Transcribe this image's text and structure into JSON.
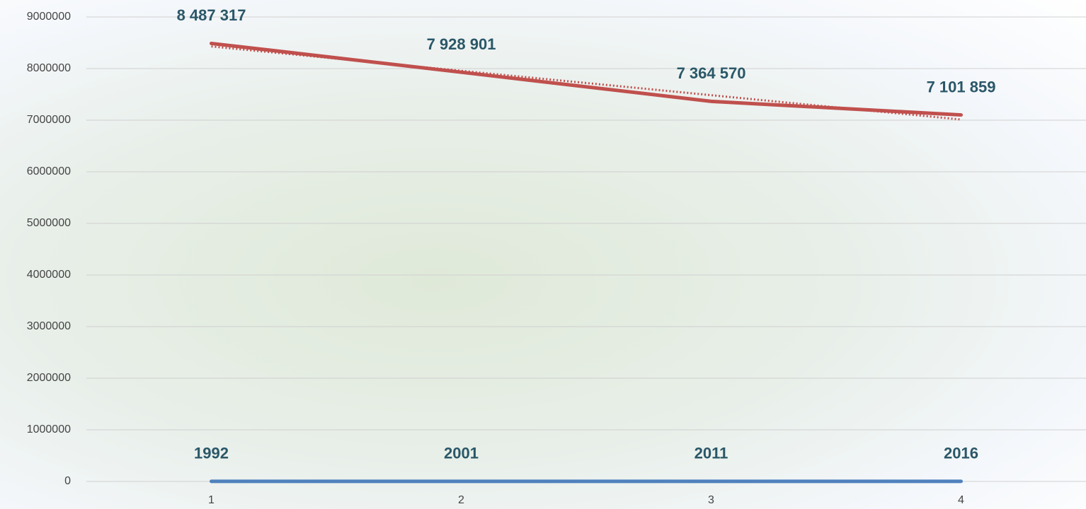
{
  "chart_data": {
    "type": "line",
    "categories": [
      "1",
      "2",
      "3",
      "4"
    ],
    "series": [
      {
        "color": "#c0504d",
        "values": [
          8487317,
          7928901,
          7364570,
          7101859
        ],
        "value_labels": [
          "8 487 317",
          "7 928 901",
          "7 364 570",
          "7 101 859"
        ],
        "trendline": true
      },
      {
        "color": "#4f81bd",
        "values": [
          1992,
          2001,
          2011,
          2016
        ]
      }
    ],
    "ylim": [
      0,
      9000000
    ],
    "yticks": [
      0,
      1000000,
      2000000,
      3000000,
      4000000,
      5000000,
      6000000,
      7000000,
      8000000,
      9000000
    ],
    "grid": true
  }
}
